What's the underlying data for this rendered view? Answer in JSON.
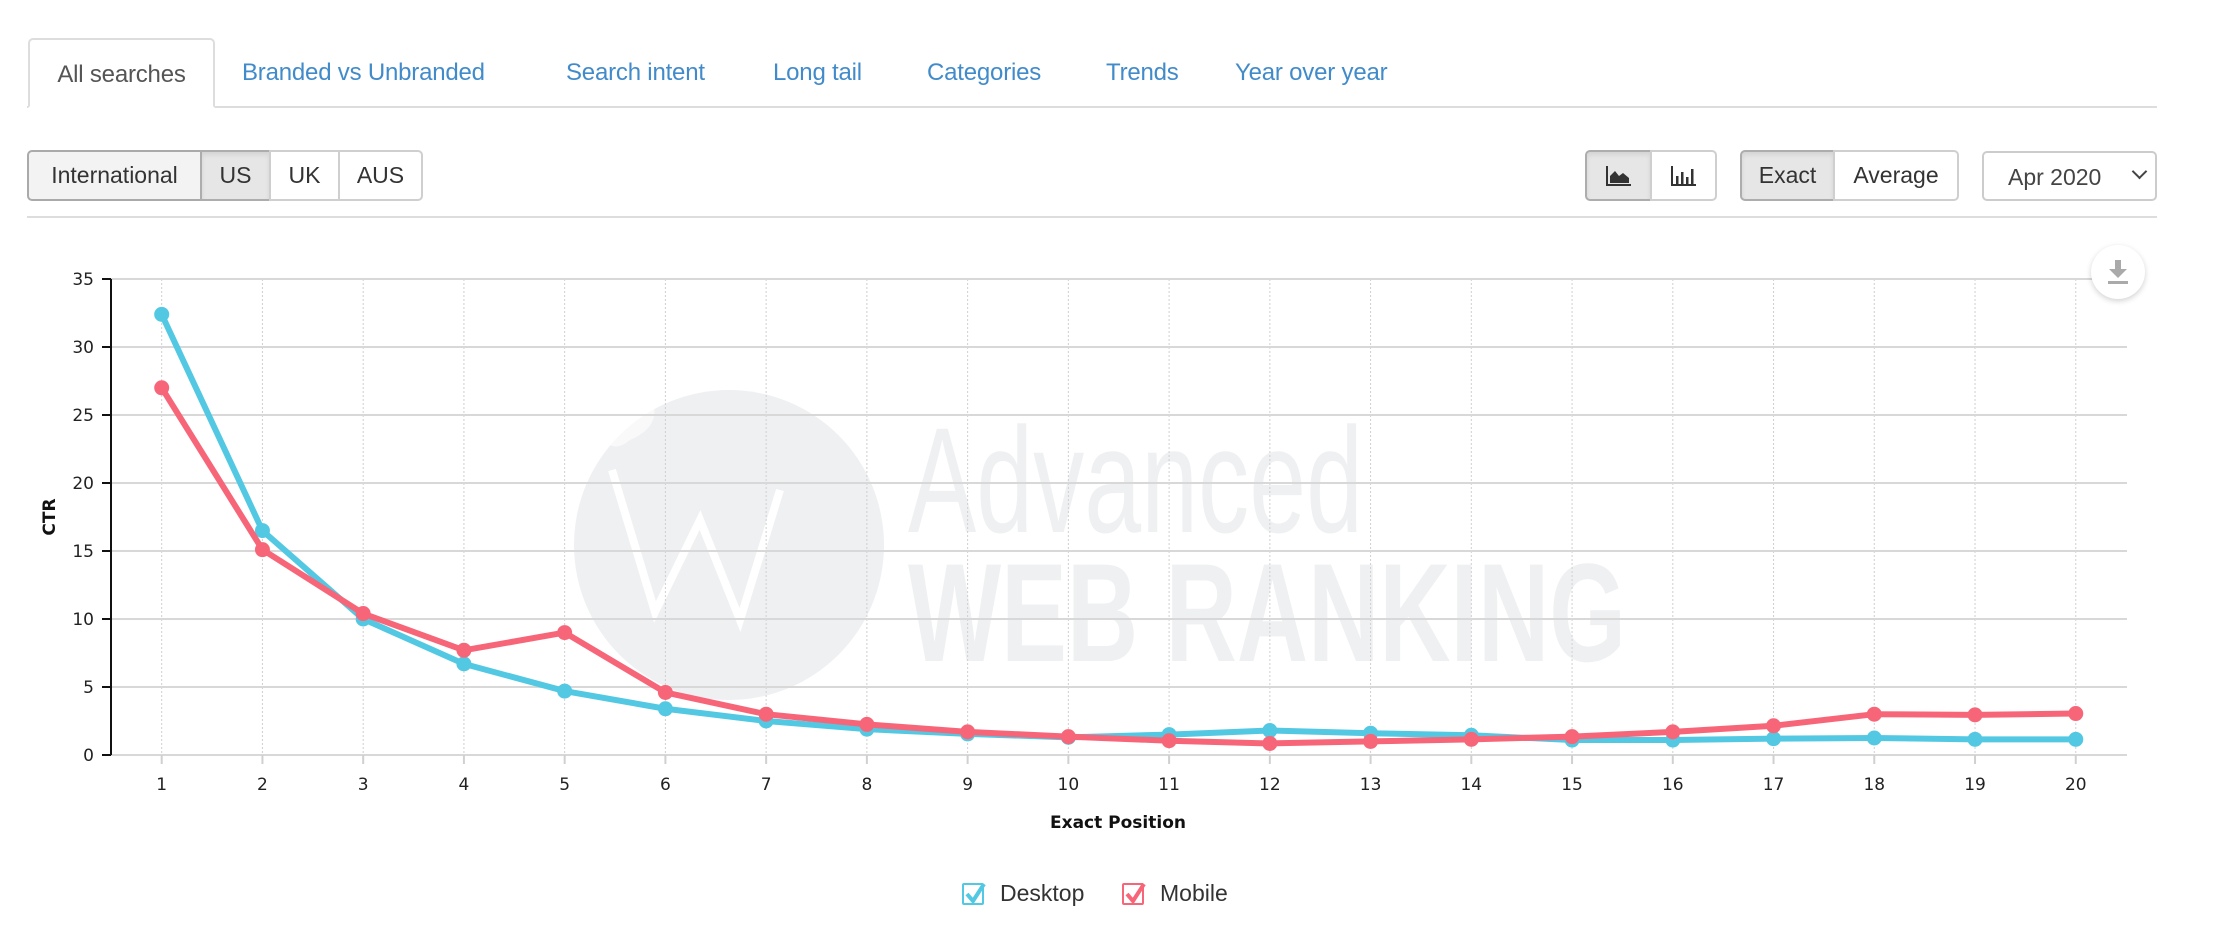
{
  "tabs": [
    {
      "label": "All searches",
      "active": true
    },
    {
      "label": "Branded vs Unbranded",
      "active": false
    },
    {
      "label": "Search intent",
      "active": false
    },
    {
      "label": "Long tail",
      "active": false
    },
    {
      "label": "Categories",
      "active": false
    },
    {
      "label": "Trends",
      "active": false
    },
    {
      "label": "Year over year",
      "active": false
    }
  ],
  "region_buttons": [
    {
      "label": "International",
      "state": "hover"
    },
    {
      "label": "US",
      "state": "active"
    },
    {
      "label": "UK",
      "state": "normal"
    },
    {
      "label": "AUS",
      "state": "normal"
    }
  ],
  "chart_type_buttons": [
    {
      "icon": "area-chart-icon",
      "state": "active"
    },
    {
      "icon": "bar-chart-icon",
      "state": "normal"
    }
  ],
  "mode_buttons": [
    {
      "label": "Exact",
      "state": "active"
    },
    {
      "label": "Average",
      "state": "normal"
    }
  ],
  "date_select": {
    "value": "Apr 2020"
  },
  "download_button": {
    "icon": "download-icon"
  },
  "watermark": {
    "line1": "Advanced",
    "line2": "WEB RANKING"
  },
  "colors": {
    "desktop": "#53c8e3",
    "mobile": "#f76678",
    "link": "#428bca",
    "grid": "#d8d8d8",
    "watermark": "#eff0f2"
  },
  "legend": [
    {
      "label": "Desktop",
      "color": "#53c8e3",
      "checked": true
    },
    {
      "label": "Mobile",
      "color": "#f76678",
      "checked": true
    }
  ],
  "chart_data": {
    "type": "line",
    "title": "",
    "xlabel": "Exact Position",
    "ylabel": "CTR",
    "x": [
      1,
      2,
      3,
      4,
      5,
      6,
      7,
      8,
      9,
      10,
      11,
      12,
      13,
      14,
      15,
      16,
      17,
      18,
      19,
      20
    ],
    "ylim": [
      0,
      35
    ],
    "yticks": [
      0,
      5,
      10,
      15,
      20,
      25,
      30,
      35
    ],
    "grid": true,
    "legend_position": "bottom",
    "series": [
      {
        "name": "Desktop",
        "color": "#53c8e3",
        "values": [
          32.4,
          16.5,
          10.0,
          6.7,
          4.7,
          3.4,
          2.5,
          1.9,
          1.55,
          1.3,
          1.5,
          1.8,
          1.6,
          1.45,
          1.1,
          1.1,
          1.2,
          1.25,
          1.15,
          1.15
        ]
      },
      {
        "name": "Mobile",
        "color": "#f76678",
        "values": [
          27.0,
          15.1,
          10.4,
          7.7,
          9.0,
          4.6,
          3.0,
          2.25,
          1.7,
          1.35,
          1.05,
          0.85,
          1.0,
          1.15,
          1.35,
          1.7,
          2.15,
          3.0,
          2.95,
          3.05
        ]
      }
    ]
  }
}
